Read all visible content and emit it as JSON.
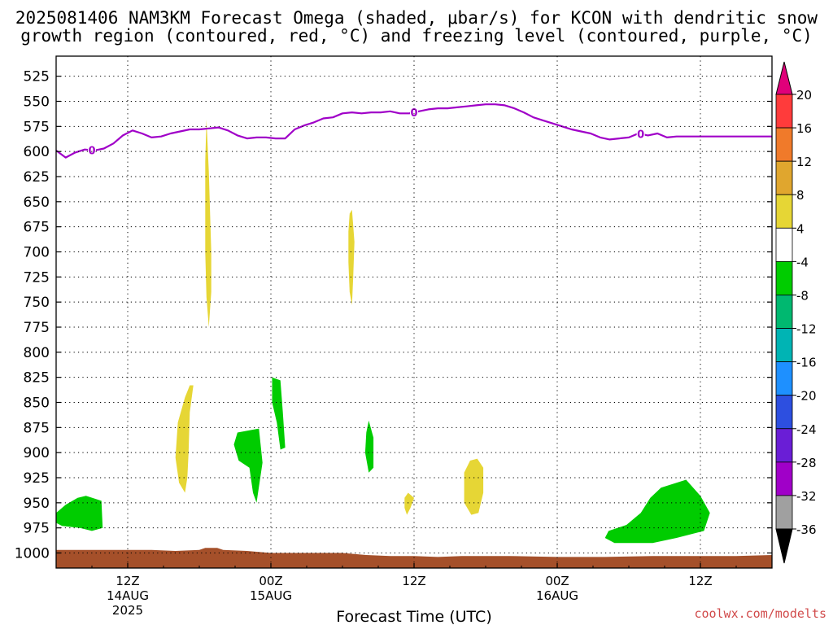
{
  "chart_data": {
    "type": "time-height cross section",
    "title_lines": [
      "2025081406 NAM3KM Forecast Omega (shaded, μbar/s) for KCON with dendritic snow",
      "growth region (contoured, red, °C) and freezing level (contoured, purple, °C)"
    ],
    "xlabel": "Forecast Time (UTC)",
    "credit": "coolwx.com/modelts",
    "y_axis": {
      "ticks": [
        525,
        550,
        575,
        600,
        625,
        650,
        675,
        700,
        725,
        750,
        775,
        800,
        825,
        850,
        875,
        900,
        925,
        950,
        975,
        1000
      ],
      "range": [
        505,
        1015
      ]
    },
    "x_axis": {
      "range_hours": [
        0,
        60
      ],
      "ticks": [
        {
          "hour": 6,
          "lines": [
            "12Z",
            "14AUG",
            "2025"
          ]
        },
        {
          "hour": 18,
          "lines": [
            "00Z",
            "15AUG"
          ]
        },
        {
          "hour": 30,
          "lines": [
            "12Z"
          ]
        },
        {
          "hour": 42,
          "lines": [
            "00Z",
            "16AUG"
          ]
        },
        {
          "hour": 54,
          "lines": [
            "12Z"
          ]
        }
      ]
    },
    "grid": true,
    "colorbar": {
      "labels": [
        "20",
        "16",
        "12",
        "8",
        "4",
        "-4",
        "-8",
        "-12",
        "-16",
        "-20",
        "-24",
        "-28",
        "-32",
        "-36"
      ],
      "colors": [
        "#e0007a",
        "#ff3b3b",
        "#f07a2a",
        "#e0a62e",
        "#e6d635",
        "#ffffff",
        "#00cc00",
        "#00b870",
        "#00b4b4",
        "#1e90ff",
        "#2d4fe0",
        "#6a1ed6",
        "#a000c8",
        "#a0a0a0",
        "#000000"
      ]
    },
    "freezing_level": {
      "label": "0",
      "label_hours": [
        3,
        30,
        49
      ],
      "hours": [
        0,
        0.8,
        1.6,
        2.4,
        3.2,
        4.0,
        4.8,
        5.6,
        6.4,
        7.2,
        8.0,
        8.8,
        9.6,
        10.4,
        11.2,
        12.0,
        12.8,
        13.6,
        14.4,
        15.2,
        16.0,
        16.8,
        17.6,
        18.4,
        19.2,
        20.0,
        20.8,
        21.6,
        22.4,
        23.2,
        24.0,
        24.8,
        25.6,
        26.4,
        27.2,
        28.0,
        28.8,
        29.6,
        30.4,
        31.2,
        32.0,
        32.8,
        33.6,
        34.4,
        35.2,
        36.0,
        36.8,
        37.6,
        38.4,
        39.2,
        40.0,
        40.8,
        41.6,
        42.4,
        43.2,
        44.0,
        44.8,
        45.6,
        46.4,
        47.2,
        48.0,
        48.8,
        49.6,
        50.4,
        51.2,
        52.0,
        52.8,
        53.6,
        54.4,
        55.2,
        56.0,
        56.8,
        57.6,
        58.4,
        59.2,
        60.0
      ],
      "pressure": [
        599,
        606,
        601,
        598,
        599,
        597,
        592,
        584,
        579,
        582,
        586,
        585,
        582,
        580,
        578,
        578,
        577,
        576,
        579,
        584,
        587,
        586,
        586,
        587,
        587,
        578,
        574,
        571,
        567,
        566,
        562,
        561,
        562,
        561,
        561,
        560,
        562,
        562,
        560,
        558,
        557,
        557,
        556,
        555,
        554,
        553,
        553,
        554,
        557,
        561,
        566,
        569,
        572,
        575,
        578,
        580,
        582,
        586,
        588,
        587,
        586,
        582,
        584,
        582,
        586,
        585,
        585,
        585,
        585,
        585,
        585,
        585,
        585,
        585,
        585,
        585
      ]
    },
    "omega_regions": [
      {
        "sign": "+",
        "color": "#e6d635",
        "points": [
          [
            12.6,
            568
          ],
          [
            12.8,
            620
          ],
          [
            12.9,
            660
          ],
          [
            13.0,
            700
          ],
          [
            13.0,
            740
          ],
          [
            12.8,
            775
          ],
          [
            12.6,
            745
          ],
          [
            12.5,
            700
          ],
          [
            12.5,
            655
          ],
          [
            12.5,
            610
          ]
        ]
      },
      {
        "sign": "+",
        "color": "#e6d635",
        "points": [
          [
            24.8,
            658
          ],
          [
            25.0,
            690
          ],
          [
            24.9,
            725
          ],
          [
            24.8,
            753
          ],
          [
            24.6,
            740
          ],
          [
            24.5,
            710
          ],
          [
            24.5,
            680
          ],
          [
            24.6,
            662
          ]
        ]
      },
      {
        "sign": "+",
        "color": "#e6d635",
        "points": [
          [
            11.5,
            833
          ],
          [
            11.2,
            860
          ],
          [
            11.1,
            900
          ],
          [
            11.0,
            925
          ],
          [
            10.8,
            940
          ],
          [
            10.3,
            930
          ],
          [
            10.0,
            905
          ],
          [
            10.2,
            870
          ],
          [
            10.8,
            845
          ],
          [
            11.2,
            833
          ]
        ]
      },
      {
        "sign": "+",
        "color": "#e6d635",
        "points": [
          [
            29.5,
            940
          ],
          [
            30.0,
            945
          ],
          [
            29.7,
            955
          ],
          [
            29.4,
            962
          ],
          [
            29.2,
            955
          ],
          [
            29.2,
            945
          ]
        ]
      },
      {
        "sign": "+",
        "color": "#e6d635",
        "points": [
          [
            35.3,
            906
          ],
          [
            35.8,
            915
          ],
          [
            35.8,
            940
          ],
          [
            35.4,
            960
          ],
          [
            34.8,
            962
          ],
          [
            34.2,
            950
          ],
          [
            34.2,
            920
          ],
          [
            34.7,
            908
          ]
        ]
      },
      {
        "sign": "-",
        "color": "#00cc00",
        "points": [
          [
            1.8,
            945
          ],
          [
            2.5,
            943
          ],
          [
            3.8,
            948
          ],
          [
            3.9,
            975
          ],
          [
            3.0,
            978
          ],
          [
            2.0,
            975
          ],
          [
            0.5,
            973
          ],
          [
            0,
            970
          ],
          [
            0,
            960
          ],
          [
            0.8,
            952
          ]
        ]
      },
      {
        "sign": "-",
        "color": "#00cc00",
        "points": [
          [
            15.2,
            880
          ],
          [
            17.0,
            876
          ],
          [
            17.3,
            910
          ],
          [
            16.8,
            950
          ],
          [
            16.5,
            940
          ],
          [
            16.2,
            915
          ],
          [
            15.3,
            908
          ],
          [
            14.9,
            892
          ]
        ]
      },
      {
        "sign": "-",
        "color": "#00cc00",
        "points": [
          [
            18.1,
            825
          ],
          [
            18.8,
            828
          ],
          [
            19.0,
            860
          ],
          [
            19.2,
            895
          ],
          [
            18.8,
            897
          ],
          [
            18.5,
            870
          ],
          [
            18.1,
            850
          ]
        ]
      },
      {
        "sign": "-",
        "color": "#00cc00",
        "points": [
          [
            26.2,
            868
          ],
          [
            26.6,
            885
          ],
          [
            26.6,
            915
          ],
          [
            26.2,
            920
          ],
          [
            25.9,
            900
          ],
          [
            26.0,
            880
          ]
        ]
      },
      {
        "sign": "-",
        "color": "#00cc00",
        "points": [
          [
            50.7,
            935
          ],
          [
            52.8,
            927
          ],
          [
            54.0,
            943
          ],
          [
            54.8,
            960
          ],
          [
            54.3,
            978
          ],
          [
            52.0,
            985
          ],
          [
            50.0,
            990
          ],
          [
            46.8,
            990
          ],
          [
            46.0,
            985
          ],
          [
            46.3,
            978
          ],
          [
            47.8,
            972
          ],
          [
            49.0,
            960
          ],
          [
            49.8,
            945
          ]
        ]
      }
    ],
    "terrain": {
      "color": "#a5502a",
      "hours": [
        0,
        5,
        8,
        10,
        12,
        12.5,
        13.5,
        14,
        16,
        18,
        20,
        24,
        26,
        28,
        30,
        32,
        34,
        38,
        42,
        46,
        50,
        54,
        57,
        60
      ],
      "pressure": [
        997,
        997,
        997,
        998,
        997,
        995,
        995,
        997,
        998,
        1000,
        1000,
        1000,
        1002,
        1003,
        1003,
        1004,
        1003,
        1003,
        1004,
        1004,
        1003,
        1003,
        1003,
        1002
      ]
    }
  }
}
